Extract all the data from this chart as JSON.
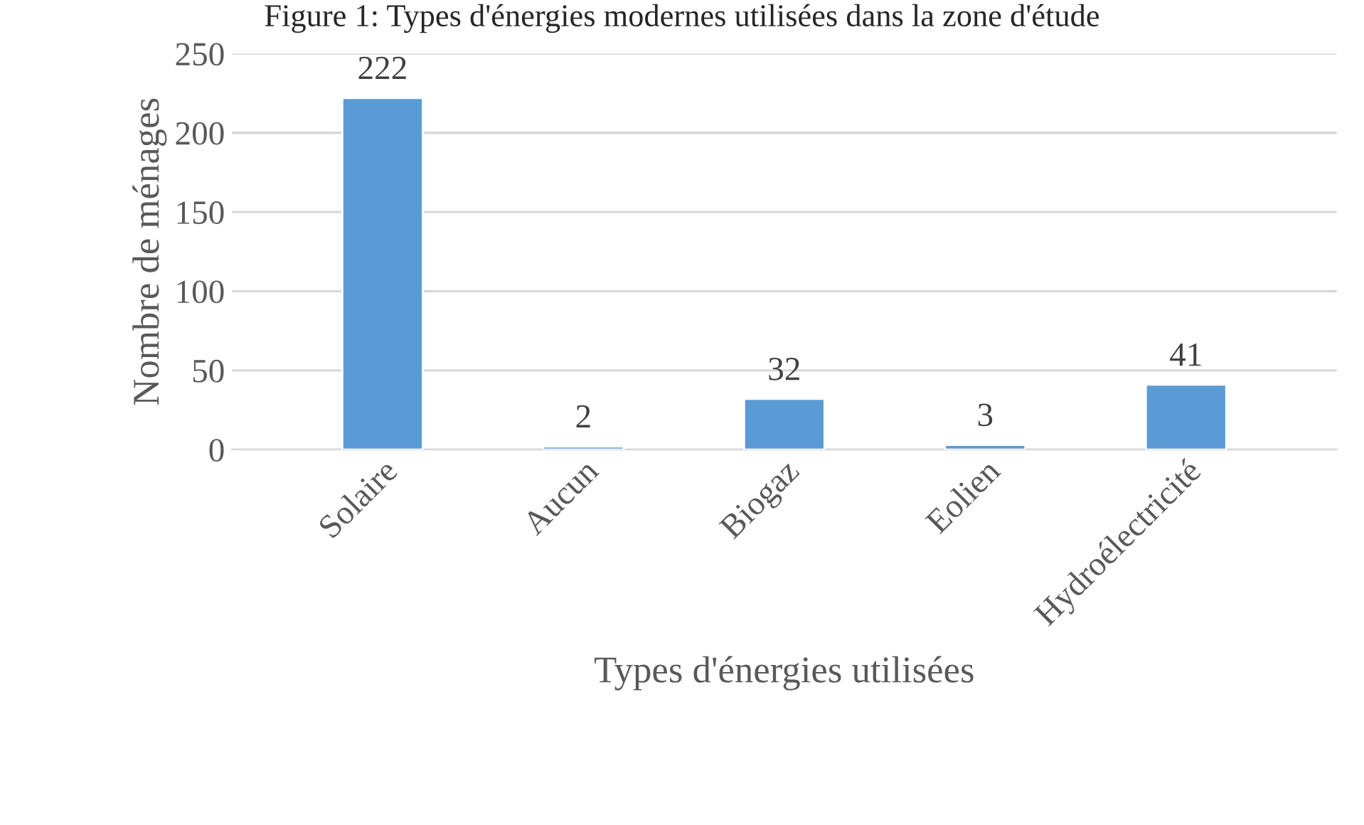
{
  "chart_data": {
    "type": "bar",
    "title": "Figure 1: Types d'énergies modernes utilisées dans la zone d'étude",
    "xlabel": "Types d'énergies utilisées",
    "ylabel": "Nombre de ménages",
    "categories": [
      "Solaire",
      "Aucun",
      "Biogaz",
      "Eolien",
      "Hydroélectricité"
    ],
    "values": [
      222,
      2,
      32,
      3,
      41
    ],
    "color": "#5b9bd5",
    "ylim": [
      0,
      250
    ],
    "yticks": [
      0,
      50,
      100,
      150,
      200,
      250
    ],
    "grid": "y",
    "data_labels": true
  }
}
